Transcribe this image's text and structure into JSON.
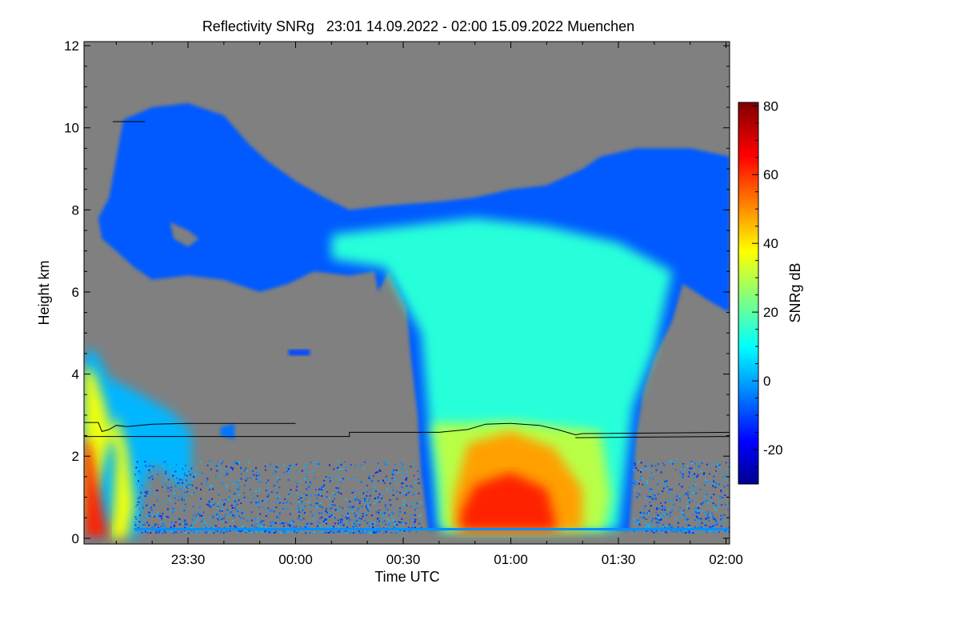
{
  "chart_data": {
    "type": "heatmap",
    "title": "Reflectivity SNRg   23:01 14.09.2022 - 02:00 15.09.2022 Muenchen",
    "xlabel": "Time UTC",
    "ylabel": "Height km",
    "x_units": "minutes after 23:00 UTC",
    "xlim": [
      1,
      181
    ],
    "ylim": [
      -0.14,
      12.1
    ],
    "x_ticks": [
      {
        "value": 30,
        "label": "23:30"
      },
      {
        "value": 60,
        "label": "00:00"
      },
      {
        "value": 90,
        "label": "00:30"
      },
      {
        "value": 120,
        "label": "01:00"
      },
      {
        "value": 150,
        "label": "01:30"
      },
      {
        "value": 180,
        "label": "02:00"
      }
    ],
    "y_ticks": [
      {
        "value": 0,
        "label": "0"
      },
      {
        "value": 2,
        "label": "2"
      },
      {
        "value": 4,
        "label": "4"
      },
      {
        "value": 6,
        "label": "6"
      },
      {
        "value": 8,
        "label": "8"
      },
      {
        "value": 10,
        "label": "10"
      },
      {
        "value": 12,
        "label": "12"
      }
    ],
    "background_color": "#808080",
    "colorbar": {
      "label": "SNRg dB",
      "colormap": "jet",
      "range": [
        -30,
        81
      ],
      "ticks": [
        {
          "value": -20,
          "label": "-20"
        },
        {
          "value": 0,
          "label": "0"
        },
        {
          "value": 20,
          "label": "20"
        },
        {
          "value": 40,
          "label": "40"
        },
        {
          "value": 60,
          "label": "60"
        },
        {
          "value": 80,
          "label": "80"
        }
      ]
    },
    "regions": [
      {
        "name": "upper-ice-cloud",
        "snr_db": -8,
        "points": [
          [
            5,
            7.8
          ],
          [
            8,
            8.3
          ],
          [
            12,
            10.2
          ],
          [
            20,
            10.5
          ],
          [
            30,
            10.6
          ],
          [
            40,
            10.3
          ],
          [
            47,
            9.6
          ],
          [
            52,
            9.2
          ],
          [
            60,
            8.7
          ],
          [
            68,
            8.3
          ],
          [
            75,
            8.0
          ],
          [
            85,
            8.1
          ],
          [
            100,
            8.2
          ],
          [
            110,
            8.3
          ],
          [
            120,
            8.5
          ],
          [
            130,
            8.6
          ],
          [
            140,
            9.0
          ],
          [
            145,
            9.3
          ],
          [
            155,
            9.5
          ],
          [
            170,
            9.5
          ],
          [
            181,
            9.3
          ],
          [
            181,
            5.5
          ],
          [
            175,
            5.8
          ],
          [
            168,
            6.2
          ],
          [
            165,
            5.3
          ],
          [
            160,
            4.4
          ],
          [
            157,
            3.6
          ],
          [
            155,
            2.5
          ],
          [
            153,
            0.2
          ],
          [
            97,
            0.2
          ],
          [
            95,
            1.6
          ],
          [
            94,
            3.0
          ],
          [
            92,
            4.5
          ],
          [
            91,
            5.6
          ],
          [
            86,
            6.5
          ],
          [
            83,
            6.0
          ],
          [
            82,
            6.5
          ],
          [
            75,
            6.4
          ],
          [
            65,
            6.5
          ],
          [
            58,
            6.2
          ],
          [
            50,
            6.0
          ],
          [
            40,
            6.3
          ],
          [
            30,
            6.4
          ],
          [
            20,
            6.3
          ],
          [
            15,
            6.6
          ],
          [
            10,
            7.0
          ],
          [
            6,
            7.3
          ]
        ]
      },
      {
        "name": "mid-cloud-core",
        "snr_db": 14,
        "points": [
          [
            70,
            7.4
          ],
          [
            90,
            7.6
          ],
          [
            110,
            7.8
          ],
          [
            130,
            7.6
          ],
          [
            150,
            7.2
          ],
          [
            165,
            6.5
          ],
          [
            160,
            4.6
          ],
          [
            154,
            3.2
          ],
          [
            150,
            0.2
          ],
          [
            100,
            0.2
          ],
          [
            97,
            3.0
          ],
          [
            95,
            5.0
          ],
          [
            85,
            6.6
          ],
          [
            70,
            6.8
          ]
        ]
      },
      {
        "name": "melting-layer",
        "snr_db": 30,
        "points": [
          [
            98,
            2.8
          ],
          [
            110,
            2.8
          ],
          [
            120,
            2.85
          ],
          [
            135,
            2.7
          ],
          [
            145,
            2.6
          ],
          [
            148,
            1.0
          ],
          [
            146,
            0.2
          ],
          [
            101,
            0.2
          ],
          [
            100,
            1.5
          ]
        ]
      },
      {
        "name": "rain-core",
        "snr_db": 48,
        "points": [
          [
            108,
            2.3
          ],
          [
            120,
            2.6
          ],
          [
            132,
            2.2
          ],
          [
            140,
            1.2
          ],
          [
            140,
            0.2
          ],
          [
            104,
            0.2
          ],
          [
            104,
            1.0
          ]
        ]
      },
      {
        "name": "heavy-rain",
        "snr_db": 62,
        "points": [
          [
            110,
            1.3
          ],
          [
            120,
            1.6
          ],
          [
            130,
            1.2
          ],
          [
            133,
            0.2
          ],
          [
            106,
            0.2
          ],
          [
            106,
            0.6
          ]
        ]
      },
      {
        "name": "left-rain-shaft",
        "snr_db": 2,
        "points": [
          [
            1,
            0
          ],
          [
            1,
            4.5
          ],
          [
            4,
            4.6
          ],
          [
            8,
            3.9
          ],
          [
            15,
            3.6
          ],
          [
            25,
            3.1
          ],
          [
            31,
            2.6
          ],
          [
            31,
            1.6
          ],
          [
            28,
            1.2
          ],
          [
            24,
            1.6
          ],
          [
            20,
            1.8
          ],
          [
            17,
            1.0
          ],
          [
            16,
            0
          ],
          [
            13,
            0
          ],
          [
            10,
            0.8
          ],
          [
            8,
            0
          ]
        ]
      },
      {
        "name": "left-rain-core",
        "snr_db": 36,
        "points": [
          [
            1,
            0
          ],
          [
            1,
            4.2
          ],
          [
            4,
            4.0
          ],
          [
            7,
            3.2
          ],
          [
            10,
            2.0
          ],
          [
            9,
            0.5
          ],
          [
            8,
            0
          ],
          [
            13,
            0
          ],
          [
            15,
            0.8
          ],
          [
            13,
            2.2
          ],
          [
            10,
            3.0
          ]
        ]
      },
      {
        "name": "left-heavy-rain",
        "snr_db": 62,
        "points": [
          [
            1,
            0
          ],
          [
            1,
            2.5
          ],
          [
            3,
            2.2
          ],
          [
            5,
            1.2
          ],
          [
            8,
            0
          ]
        ]
      },
      {
        "name": "cirrus-hole",
        "snr_db": -40,
        "points": [
          [
            25,
            7.7
          ],
          [
            30,
            7.5
          ],
          [
            33,
            7.3
          ],
          [
            30,
            7.1
          ],
          [
            26,
            7.3
          ]
        ]
      },
      {
        "name": "small-echo-1",
        "snr_db": -10,
        "points": [
          [
            58,
            4.6
          ],
          [
            64,
            4.6
          ],
          [
            64,
            4.45
          ],
          [
            58,
            4.45
          ]
        ]
      },
      {
        "name": "small-echo-2",
        "snr_db": -5,
        "points": [
          [
            39,
            2.7
          ],
          [
            43,
            2.8
          ],
          [
            43,
            2.4
          ],
          [
            39,
            2.5
          ]
        ]
      }
    ],
    "clutter": {
      "snr_db_range": [
        -15,
        5
      ],
      "t_range": [
        15,
        181
      ],
      "height_range": [
        0.15,
        1.9
      ],
      "count": 2600
    },
    "lines": [
      {
        "name": "cloud-base-line-upper",
        "points": [
          [
            1,
            2.82
          ],
          [
            5,
            2.82
          ],
          [
            6,
            2.6
          ],
          [
            8,
            2.65
          ],
          [
            10,
            2.75
          ],
          [
            13,
            2.72
          ],
          [
            20,
            2.78
          ],
          [
            30,
            2.8
          ],
          [
            60,
            2.8
          ]
        ]
      },
      {
        "name": "cloud-base-line-lower",
        "points": [
          [
            1,
            2.48
          ],
          [
            60,
            2.48
          ],
          [
            75,
            2.48
          ],
          [
            75,
            2.58
          ],
          [
            100,
            2.58
          ],
          [
            108,
            2.65
          ],
          [
            113,
            2.78
          ],
          [
            120,
            2.8
          ],
          [
            128,
            2.75
          ],
          [
            133,
            2.65
          ],
          [
            138,
            2.52
          ],
          [
            140,
            2.55
          ],
          [
            181,
            2.58
          ]
        ]
      },
      {
        "name": "cloud-base-line-lower-2",
        "points": [
          [
            138,
            2.45
          ],
          [
            181,
            2.48
          ]
        ]
      },
      {
        "name": "cirrus-top-line",
        "points": [
          [
            9,
            10.15
          ],
          [
            18,
            10.15
          ]
        ]
      }
    ]
  }
}
